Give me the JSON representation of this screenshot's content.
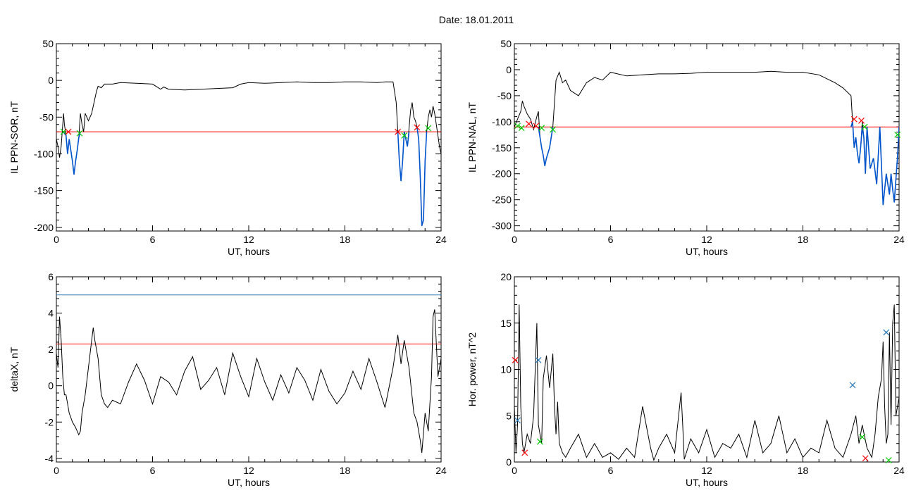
{
  "figure": {
    "title": "Date:  18.01.2011"
  },
  "chart_data": [
    {
      "type": "line",
      "xlabel": "UT, hours",
      "ylabel": "IL PPN-SOR, nT",
      "xlim": [
        0,
        24
      ],
      "ylim": [
        -205,
        50
      ],
      "xticks": [
        0,
        6,
        12,
        18,
        24
      ],
      "yticks": [
        50,
        0,
        -50,
        -100,
        -150,
        -200
      ],
      "threshold_lines": [
        {
          "y": -70,
          "color": "#ff0000"
        }
      ],
      "series": [
        {
          "color": "#000000",
          "x": [
            0,
            0.1,
            0.2,
            0.3,
            0.45,
            0.5,
            0.6,
            0.7,
            0.8,
            0.9,
            1.0,
            1.1,
            1.2,
            1.3,
            1.4,
            1.5,
            1.6,
            1.7,
            1.8,
            2.0,
            2.2,
            2.5,
            2.6,
            2.8,
            3.0,
            3.5,
            4.0,
            5.0,
            6.0,
            6.5,
            6.7,
            7.0,
            8.0,
            9.0,
            10.0,
            11.0,
            11.5,
            12.0,
            13.0,
            14.0,
            15.0,
            16.0,
            17.0,
            18.0,
            19.0,
            20.0,
            20.5,
            21.0,
            21.2,
            21.3,
            21.4,
            21.5,
            21.6,
            21.7,
            21.8,
            21.9,
            22.0,
            22.1,
            22.2,
            22.3,
            22.4,
            22.5,
            22.6,
            22.7,
            22.8,
            22.9,
            23.0,
            23.1,
            23.2,
            23.3,
            23.4,
            23.5,
            23.6,
            23.7,
            23.8,
            23.9,
            24.0
          ],
          "y": [
            -80,
            -90,
            -105,
            -90,
            -45,
            -60,
            -75,
            -100,
            -80,
            -95,
            -110,
            -128,
            -110,
            -95,
            -78,
            -45,
            -60,
            -70,
            -45,
            -55,
            -45,
            -15,
            -8,
            -10,
            -5,
            -5,
            -3,
            -4,
            -5,
            -12,
            -9,
            -12,
            -13,
            -12,
            -11,
            -10,
            -5,
            -3,
            -4,
            -3,
            -2,
            -3,
            -3,
            -2,
            -2,
            -3,
            -2,
            -2,
            -30,
            -70,
            -110,
            -137,
            -110,
            -70,
            -80,
            -90,
            -65,
            -40,
            -30,
            -50,
            -55,
            -64,
            -80,
            -130,
            -198,
            -190,
            -110,
            -70,
            -50,
            -40,
            -50,
            -35,
            -45,
            -60,
            -75,
            -90,
            -100
          ]
        },
        {
          "color": "#0055cc",
          "x": [
            0.45,
            0.5,
            0.6,
            0.7,
            0.8,
            0.9,
            1.0,
            1.1,
            1.2,
            1.3,
            1.4,
            1.5
          ],
          "y": [
            -70,
            -72,
            -75,
            -100,
            -80,
            -95,
            -110,
            -128,
            -110,
            -95,
            -78,
            -70
          ]
        },
        {
          "color": "#0055cc",
          "x": [
            21.3,
            21.4,
            21.5,
            21.6,
            21.7,
            21.8,
            21.9,
            22.0
          ],
          "y": [
            -70,
            -110,
            -137,
            -110,
            -70,
            -80,
            -90,
            -70
          ]
        },
        {
          "color": "#0055cc",
          "x": [
            22.5,
            22.6,
            22.7,
            22.8,
            22.9,
            23.0,
            23.1
          ],
          "y": [
            -64,
            -80,
            -130,
            -198,
            -190,
            -110,
            -70
          ]
        }
      ],
      "markers": [
        {
          "x": 0.45,
          "y": -70,
          "color": "#00cc00"
        },
        {
          "x": 0.75,
          "y": -70,
          "color": "#ff0000"
        },
        {
          "x": 1.45,
          "y": -72,
          "color": "#00cc00"
        },
        {
          "x": 21.3,
          "y": -70,
          "color": "#ff0000"
        },
        {
          "x": 21.7,
          "y": -75,
          "color": "#00cc00"
        },
        {
          "x": 22.5,
          "y": -64,
          "color": "#ff0000"
        },
        {
          "x": 23.2,
          "y": -65,
          "color": "#00cc00"
        }
      ]
    },
    {
      "type": "line",
      "xlabel": "UT, hours",
      "ylabel": "IL PPN-NAL, nT",
      "xlim": [
        0,
        24
      ],
      "ylim": [
        -310,
        50
      ],
      "xticks": [
        0,
        6,
        12,
        18,
        24
      ],
      "yticks": [
        50,
        0,
        -50,
        -100,
        -150,
        -200,
        -250,
        -300
      ],
      "threshold_lines": [
        {
          "y": -110,
          "color": "#ff0000"
        }
      ],
      "series": [
        {
          "color": "#000000",
          "x": [
            0,
            0.2,
            0.4,
            0.5,
            0.6,
            0.8,
            1.0,
            1.2,
            1.4,
            1.5,
            1.6,
            1.7,
            1.8,
            1.9,
            2.0,
            2.2,
            2.4,
            2.6,
            2.8,
            3.0,
            3.2,
            3.5,
            4.0,
            4.5,
            5.0,
            5.5,
            6.0,
            7.0,
            8.0,
            9.0,
            10.0,
            11.0,
            12.0,
            13.0,
            14.0,
            15.0,
            16.0,
            17.0,
            18.0,
            19.0,
            20.0,
            20.5,
            21.0,
            21.1,
            21.2,
            21.3,
            21.4,
            21.5,
            21.6,
            21.7,
            21.8,
            21.9,
            22.0,
            22.2,
            22.4,
            22.6,
            22.8,
            23.0,
            23.2,
            23.4,
            23.5,
            23.6,
            23.7,
            23.8,
            23.9,
            24.0
          ],
          "y": [
            -110,
            -95,
            -80,
            -60,
            -70,
            -85,
            -95,
            -115,
            -90,
            -80,
            -130,
            -150,
            -165,
            -185,
            -170,
            -150,
            -110,
            -20,
            -5,
            -25,
            -20,
            -40,
            -50,
            -25,
            -15,
            -20,
            -5,
            -12,
            -10,
            -8,
            -8,
            -7,
            -5,
            -5,
            -5,
            -5,
            -3,
            -5,
            -5,
            -10,
            -25,
            -35,
            -50,
            -100,
            -150,
            -130,
            -160,
            -180,
            -150,
            -100,
            -130,
            -200,
            -110,
            -190,
            -170,
            -220,
            -110,
            -260,
            -200,
            -240,
            -200,
            -230,
            -255,
            -210,
            -170,
            -110
          ]
        },
        {
          "color": "#0055cc",
          "x": [
            1.5,
            1.6,
            1.7,
            1.8,
            1.9,
            2.0,
            2.2,
            2.4
          ],
          "y": [
            -110,
            -130,
            -150,
            -165,
            -185,
            -170,
            -150,
            -110
          ]
        },
        {
          "color": "#0055cc",
          "x": [
            21.0,
            21.1,
            21.2,
            21.3,
            21.4,
            21.5,
            21.6,
            21.7,
            21.8,
            21.9,
            22.0,
            22.2,
            22.4,
            22.6,
            22.8,
            23.0,
            23.2,
            23.4,
            23.5,
            23.6,
            23.7,
            23.8,
            23.9,
            24.0
          ],
          "y": [
            -110,
            -100,
            -150,
            -130,
            -160,
            -180,
            -150,
            -110,
            -130,
            -200,
            -110,
            -190,
            -170,
            -220,
            -110,
            -260,
            -200,
            -240,
            -200,
            -230,
            -255,
            -210,
            -170,
            -110
          ]
        }
      ],
      "markers": [
        {
          "x": 0.2,
          "y": -108,
          "color": "#00cc00"
        },
        {
          "x": 0.45,
          "y": -112,
          "color": "#00cc00"
        },
        {
          "x": 0.9,
          "y": -104,
          "color": "#ff0000"
        },
        {
          "x": 1.35,
          "y": -108,
          "color": "#ff0000"
        },
        {
          "x": 1.7,
          "y": -112,
          "color": "#00cc00"
        },
        {
          "x": 2.4,
          "y": -115,
          "color": "#00cc00"
        },
        {
          "x": 21.2,
          "y": -95,
          "color": "#ff0000"
        },
        {
          "x": 21.65,
          "y": -98,
          "color": "#ff0000"
        },
        {
          "x": 21.85,
          "y": -110,
          "color": "#00cc00"
        },
        {
          "x": 23.9,
          "y": -125,
          "color": "#00cc00"
        }
      ]
    },
    {
      "type": "line",
      "xlabel": "UT, hours",
      "ylabel": "deltaX, nT",
      "xlim": [
        0,
        24
      ],
      "ylim": [
        -4.2,
        6
      ],
      "xticks": [
        0,
        6,
        12,
        18,
        24
      ],
      "yticks": [
        6,
        4,
        2,
        0,
        -2,
        -4
      ],
      "threshold_lines": [
        {
          "y": 5.0,
          "color": "#2a7ab8"
        },
        {
          "y": 2.3,
          "color": "#ff0000"
        }
      ],
      "series": [
        {
          "color": "#000000",
          "x": [
            0,
            0.1,
            0.2,
            0.3,
            0.4,
            0.5,
            0.6,
            0.8,
            1.0,
            1.2,
            1.4,
            1.5,
            1.6,
            1.8,
            2.0,
            2.2,
            2.3,
            2.4,
            2.6,
            2.8,
            3.0,
            3.2,
            3.5,
            4.0,
            4.5,
            5.0,
            5.5,
            6.0,
            6.5,
            7.0,
            7.5,
            8.0,
            8.5,
            9.0,
            9.5,
            10.0,
            10.5,
            11.0,
            11.5,
            12.0,
            12.5,
            13.0,
            13.5,
            14.0,
            14.5,
            15.0,
            15.5,
            16.0,
            16.5,
            17.0,
            17.5,
            18.0,
            18.5,
            19.0,
            19.5,
            20.0,
            20.5,
            21.0,
            21.3,
            21.5,
            21.7,
            22.0,
            22.3,
            22.5,
            22.7,
            22.8,
            23.0,
            23.2,
            23.4,
            23.5,
            23.6,
            23.8,
            24.0
          ],
          "y": [
            1.8,
            1.0,
            3.8,
            2.5,
            0.5,
            -0.5,
            -0.5,
            -1.5,
            -2.0,
            -2.3,
            -2.7,
            -2.5,
            -1.5,
            -0.5,
            1.0,
            2.5,
            3.2,
            2.5,
            1.5,
            -0.5,
            -1.0,
            -1.2,
            -0.8,
            -1.0,
            0.2,
            1.2,
            0.3,
            -1.0,
            0.5,
            0.2,
            -0.5,
            0.8,
            1.6,
            -0.2,
            0.3,
            1.0,
            -0.5,
            1.8,
            0.5,
            -0.6,
            1.5,
            0.2,
            -0.8,
            0.6,
            -0.4,
            1.0,
            0.3,
            -0.8,
            0.9,
            -0.3,
            -1.0,
            -0.4,
            0.8,
            -0.2,
            1.5,
            0.2,
            -1.2,
            1.0,
            2.8,
            1.2,
            2.5,
            1.0,
            -1.5,
            -2.0,
            -3.0,
            -3.7,
            -1.5,
            -2.5,
            0.5,
            3.8,
            4.2,
            0.5,
            1.5
          ]
        }
      ]
    },
    {
      "type": "line",
      "xlabel": "UT, hours",
      "ylabel": "Hor. power, nT^2",
      "xlim": [
        0,
        24
      ],
      "ylim": [
        0,
        20
      ],
      "xticks": [
        0,
        6,
        12,
        18,
        24
      ],
      "yticks": [
        20,
        15,
        10,
        5,
        0
      ],
      "series": [
        {
          "color": "#000000",
          "x": [
            0,
            0.1,
            0.2,
            0.3,
            0.4,
            0.5,
            0.6,
            0.8,
            1.0,
            1.2,
            1.4,
            1.5,
            1.6,
            1.7,
            1.8,
            2.0,
            2.2,
            2.4,
            2.5,
            2.6,
            2.7,
            2.8,
            3.0,
            3.2,
            3.5,
            4.0,
            4.5,
            5.0,
            5.5,
            6.0,
            6.5,
            7.0,
            7.5,
            8.0,
            8.5,
            8.7,
            9.0,
            9.5,
            10.0,
            10.4,
            10.5,
            10.6,
            11.0,
            11.5,
            12.0,
            12.5,
            13.0,
            13.5,
            14.0,
            14.5,
            15.0,
            15.5,
            16.0,
            16.5,
            17.0,
            17.5,
            18.0,
            18.5,
            19.0,
            19.5,
            20.0,
            20.5,
            21.0,
            21.3,
            21.5,
            21.7,
            22.0,
            22.3,
            22.5,
            22.7,
            22.9,
            23.0,
            23.1,
            23.2,
            23.3,
            23.4,
            23.5,
            23.6,
            23.7,
            23.8,
            24.0
          ],
          "y": [
            6.0,
            1.0,
            4.0,
            17.0,
            6.0,
            2.0,
            1.0,
            3.0,
            2.0,
            5.0,
            15.0,
            4.0,
            3.0,
            2.0,
            9.0,
            11.5,
            8.0,
            11.7,
            6.0,
            3.0,
            6.5,
            2.0,
            1.0,
            0.5,
            1.5,
            3.0,
            0.5,
            2.0,
            0.5,
            1.0,
            0.3,
            1.5,
            0.5,
            6.0,
            1.5,
            0.2,
            1.5,
            3.0,
            1.0,
            7.5,
            4.0,
            0.3,
            2.5,
            1.0,
            3.5,
            0.5,
            2.0,
            1.5,
            3.0,
            0.5,
            4.5,
            1.0,
            2.0,
            5.0,
            1.0,
            2.5,
            0.5,
            1.5,
            1.0,
            4.5,
            1.5,
            0.5,
            3.0,
            5.0,
            2.0,
            4.0,
            1.5,
            0.5,
            3.0,
            7.0,
            9.0,
            13.0,
            6.0,
            2.0,
            3.0,
            14.0,
            4.0,
            15.0,
            17.0,
            5.0,
            7.0
          ]
        }
      ],
      "markers": [
        {
          "x": 0.05,
          "y": 11.0,
          "color": "#ff0000"
        },
        {
          "x": 0.2,
          "y": 4.5,
          "color": "#2a7ab8"
        },
        {
          "x": 0.65,
          "y": 1.0,
          "color": "#ff0000"
        },
        {
          "x": 1.5,
          "y": 11.0,
          "color": "#2a7ab8"
        },
        {
          "x": 1.6,
          "y": 2.2,
          "color": "#00cc00"
        },
        {
          "x": 21.1,
          "y": 8.3,
          "color": "#2a7ab8"
        },
        {
          "x": 21.7,
          "y": 2.7,
          "color": "#00cc00"
        },
        {
          "x": 21.9,
          "y": 0.4,
          "color": "#ff0000"
        },
        {
          "x": 23.2,
          "y": 14.0,
          "color": "#2a7ab8"
        },
        {
          "x": 23.35,
          "y": 0.2,
          "color": "#00cc00"
        }
      ]
    }
  ]
}
